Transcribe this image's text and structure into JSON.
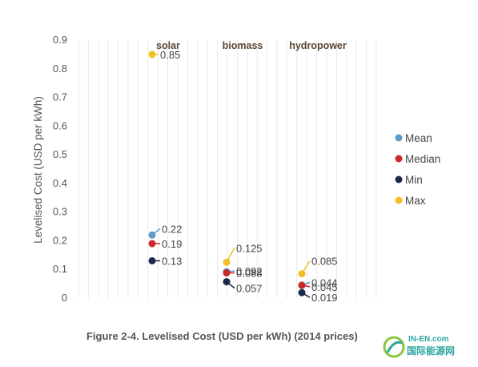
{
  "chart_data": {
    "type": "scatter",
    "ylabel": "Levelised Cost (USD per kWh)",
    "ylim": [
      0,
      0.9
    ],
    "yticks": [
      "0",
      "0.1",
      "0.2",
      "0.3",
      "0.4",
      "0.5",
      "0.6",
      "0.7",
      "0.8",
      "0.9"
    ],
    "categories": [
      "solar",
      "biomass",
      "hydropower"
    ],
    "grid": "vertical",
    "legend_position": "right",
    "series": [
      {
        "name": "Mean",
        "color": "#5b9bc5",
        "values": [
          0.22,
          0.092,
          0.044
        ],
        "labels": [
          "0.22",
          "0.092",
          "0.044"
        ]
      },
      {
        "name": "Median",
        "color": "#c9282d",
        "values": [
          0.19,
          0.088,
          0.045
        ],
        "labels": [
          "0.19",
          "0.088",
          "0.045"
        ]
      },
      {
        "name": "Min",
        "color": "#1c2a4a",
        "values": [
          0.13,
          0.057,
          0.019
        ],
        "labels": [
          "0.13",
          "0.057",
          "0.019"
        ]
      },
      {
        "name": "Max",
        "color": "#f0c026",
        "values": [
          0.85,
          0.125,
          0.085
        ],
        "labels": [
          "0.85",
          "0.125",
          "0.085"
        ]
      }
    ]
  },
  "caption": "Figure 2-4. Levelised Cost (USD per kWh) (2014 prices)",
  "watermark": {
    "latin": "IN-EN.com",
    "cjk": "国际能源网"
  }
}
